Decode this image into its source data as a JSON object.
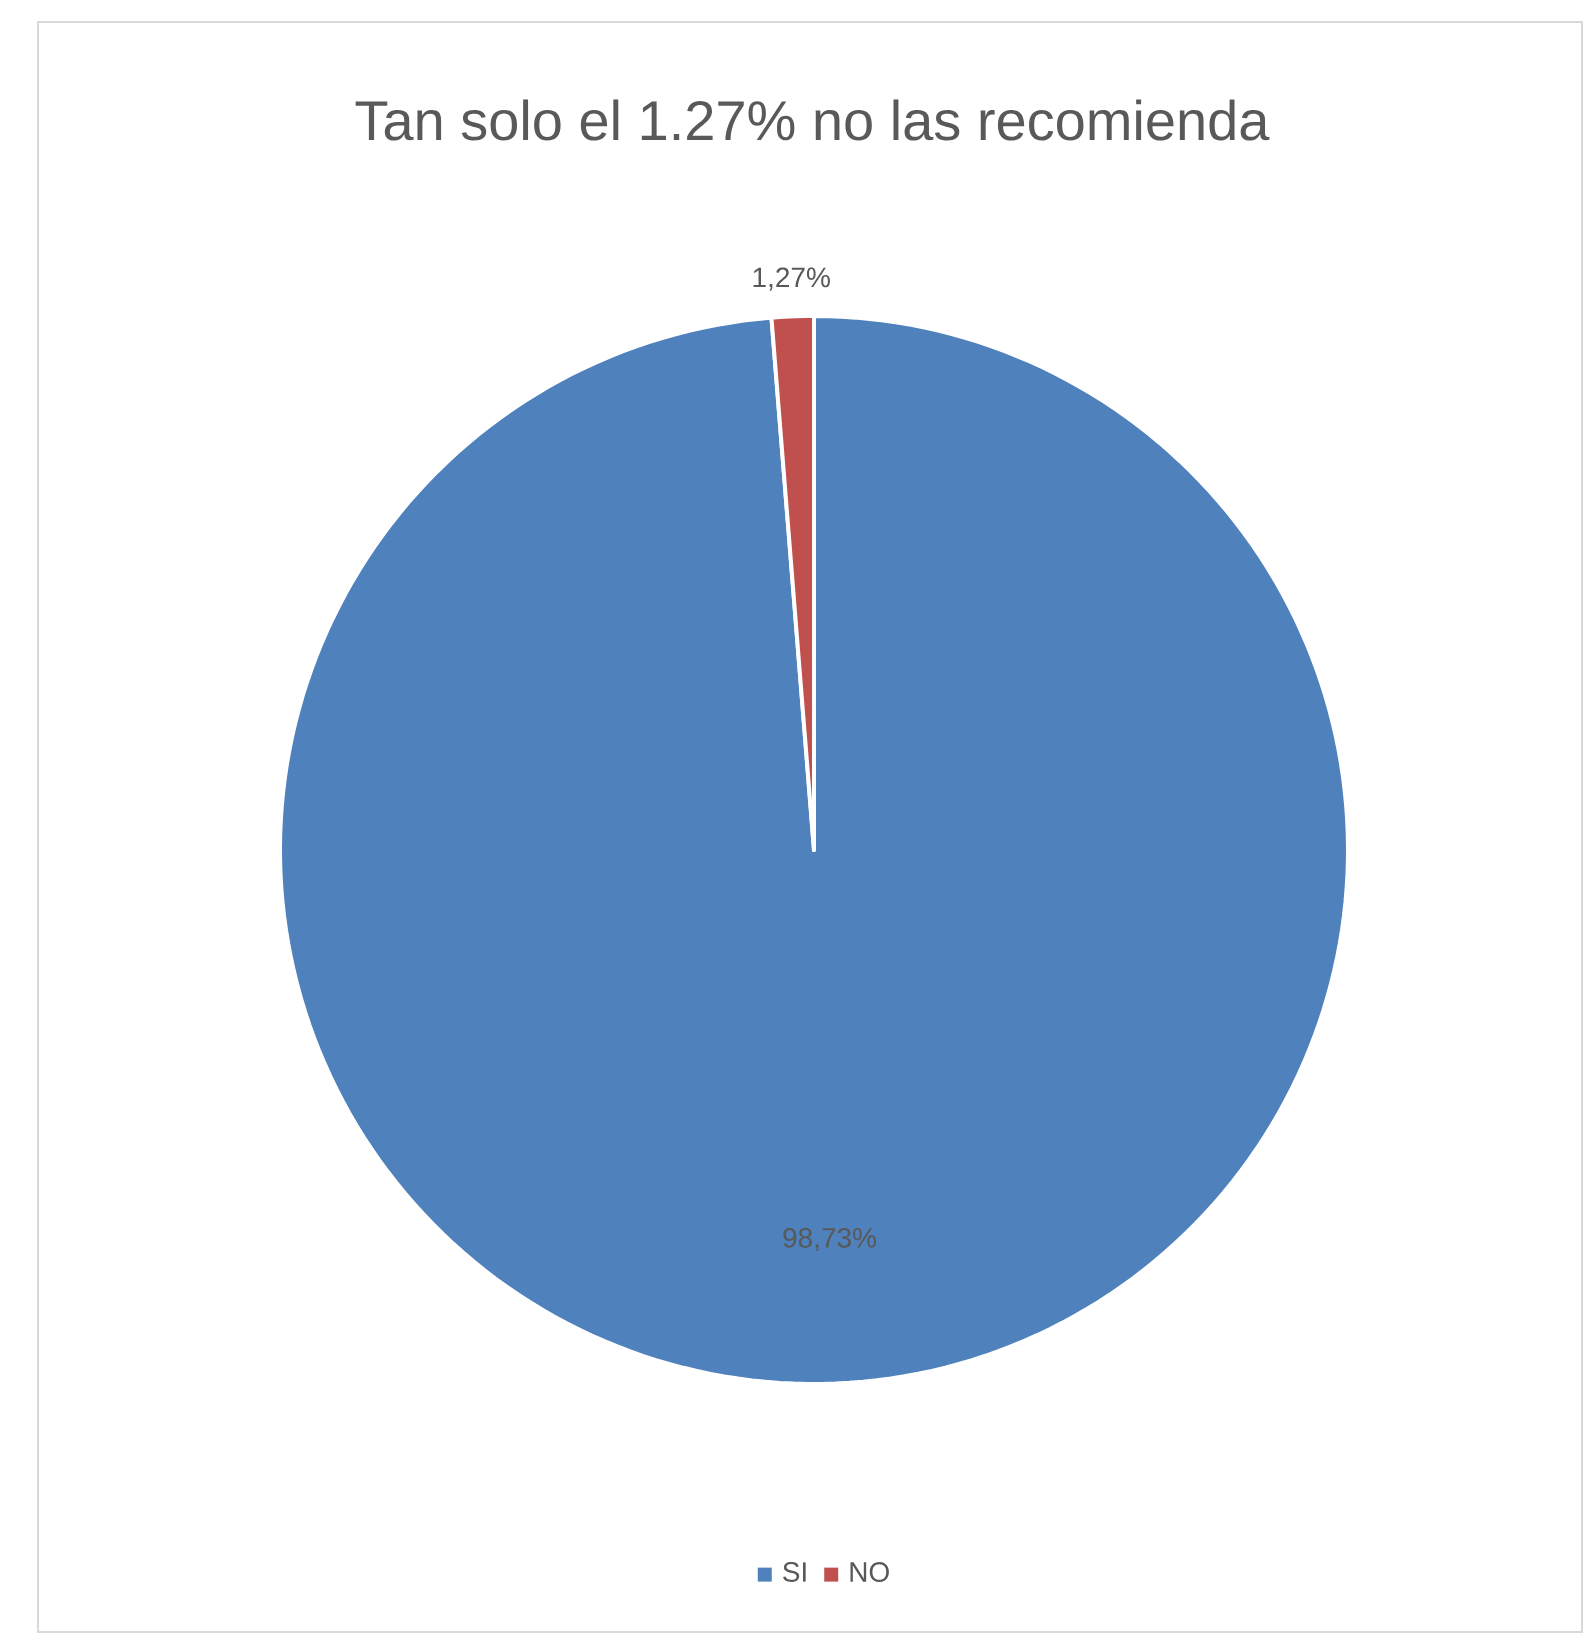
{
  "chart_data": {
    "type": "pie",
    "title": "Tan solo el 1.27% no las recomienda",
    "categories": [
      "SI",
      "NO"
    ],
    "values": [
      98.73,
      1.27
    ],
    "colors": [
      "#4f81bd",
      "#c0504d"
    ],
    "value_labels": [
      "98,73%",
      "1,27%"
    ],
    "legend": "bottom"
  }
}
